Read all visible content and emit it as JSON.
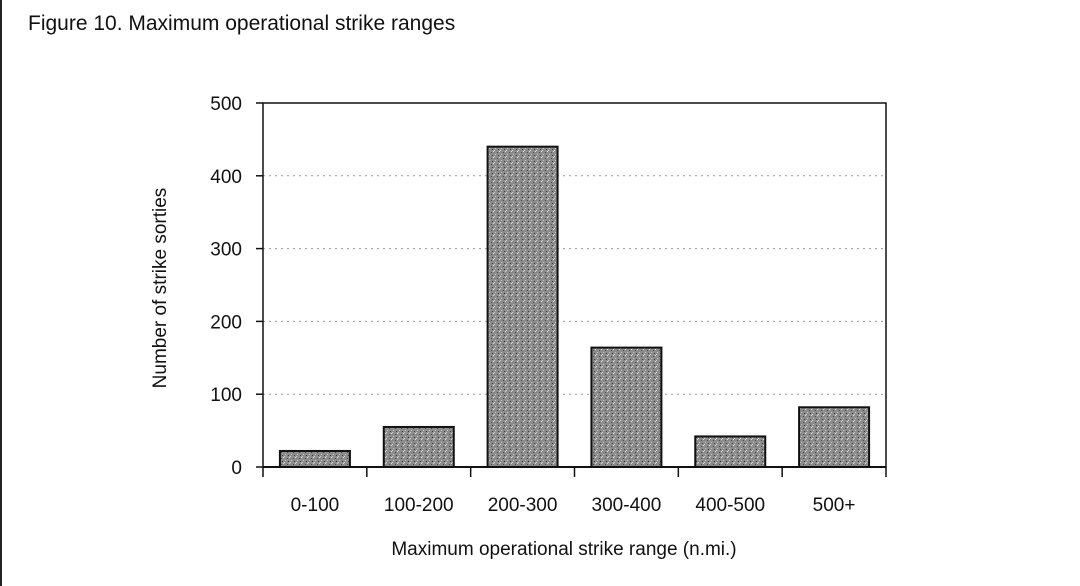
{
  "figure": {
    "title": "Figure 10. Maximum operational strike ranges"
  },
  "chart_data": {
    "type": "bar",
    "title": "Figure 10. Maximum operational strike ranges",
    "xlabel": "Maximum operational strike range (n.mi.)",
    "ylabel": "Number of strike sorties",
    "categories": [
      "0-100",
      "100-200",
      "200-300",
      "300-400",
      "400-500",
      "500+"
    ],
    "values": [
      22,
      55,
      440,
      164,
      42,
      82
    ],
    "ylim": [
      0,
      500
    ],
    "yticks": [
      0,
      100,
      200,
      300,
      400,
      500
    ],
    "grid": true,
    "legend": "none",
    "colors": {
      "bar_fill": "#8c8c8c",
      "bar_stroke": "#111111",
      "grid": "#9a9a9a",
      "axis": "#111111"
    }
  }
}
